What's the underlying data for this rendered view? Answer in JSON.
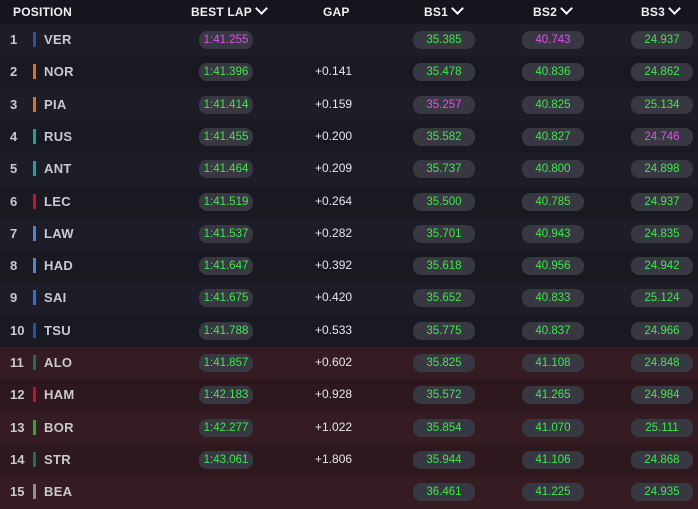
{
  "header": {
    "position": "POSITION",
    "best_lap": "BEST LAP",
    "gap": "GAP",
    "bs1": "BS1",
    "bs2": "BS2",
    "bs3": "BS3"
  },
  "colors": {
    "green": "#3ee84a",
    "purple": "#e04ff0"
  },
  "rows": [
    {
      "pos": "1",
      "driver": "VER",
      "team_color": "#2b4fa3",
      "best": "1:41.255",
      "best_c": "purple",
      "gap": "",
      "bs1": "35.385",
      "bs1_c": "green",
      "bs2": "40.743",
      "bs2_c": "purple",
      "bs3": "24.937",
      "bs3_c": "green"
    },
    {
      "pos": "2",
      "driver": "NOR",
      "team_color": "#d9731c",
      "best": "1:41.396",
      "best_c": "green",
      "gap": "+0.141",
      "bs1": "35.478",
      "bs1_c": "green",
      "bs2": "40.836",
      "bs2_c": "green",
      "bs3": "24.862",
      "bs3_c": "green"
    },
    {
      "pos": "3",
      "driver": "PIA",
      "team_color": "#d9731c",
      "best": "1:41.414",
      "best_c": "green",
      "gap": "+0.159",
      "bs1": "35.257",
      "bs1_c": "purple",
      "bs2": "40.825",
      "bs2_c": "green",
      "bs3": "25.134",
      "bs3_c": "green"
    },
    {
      "pos": "4",
      "driver": "RUS",
      "team_color": "#1aa39a",
      "best": "1:41.455",
      "best_c": "green",
      "gap": "+0.200",
      "bs1": "35.582",
      "bs1_c": "green",
      "bs2": "40.827",
      "bs2_c": "green",
      "bs3": "24.746",
      "bs3_c": "purple"
    },
    {
      "pos": "5",
      "driver": "ANT",
      "team_color": "#1aa39a",
      "best": "1:41.464",
      "best_c": "green",
      "gap": "+0.209",
      "bs1": "35.737",
      "bs1_c": "green",
      "bs2": "40.800",
      "bs2_c": "green",
      "bs3": "24.898",
      "bs3_c": "green"
    },
    {
      "pos": "6",
      "driver": "LEC",
      "team_color": "#c8102e",
      "best": "1:41.519",
      "best_c": "green",
      "gap": "+0.264",
      "bs1": "35.500",
      "bs1_c": "green",
      "bs2": "40.785",
      "bs2_c": "green",
      "bs3": "24.937",
      "bs3_c": "green"
    },
    {
      "pos": "7",
      "driver": "LAW",
      "team_color": "#5b7fd6",
      "best": "1:41.537",
      "best_c": "green",
      "gap": "+0.282",
      "bs1": "35.701",
      "bs1_c": "green",
      "bs2": "40.943",
      "bs2_c": "green",
      "bs3": "24.835",
      "bs3_c": "green"
    },
    {
      "pos": "8",
      "driver": "HAD",
      "team_color": "#5b7fd6",
      "best": "1:41.647",
      "best_c": "green",
      "gap": "+0.392",
      "bs1": "35.618",
      "bs1_c": "green",
      "bs2": "40.956",
      "bs2_c": "green",
      "bs3": "24.942",
      "bs3_c": "green"
    },
    {
      "pos": "9",
      "driver": "SAI",
      "team_color": "#2e6fd8",
      "best": "1:41.675",
      "best_c": "green",
      "gap": "+0.420",
      "bs1": "35.652",
      "bs1_c": "green",
      "bs2": "40.833",
      "bs2_c": "green",
      "bs3": "25.124",
      "bs3_c": "green"
    },
    {
      "pos": "10",
      "driver": "TSU",
      "team_color": "#2b4fa3",
      "best": "1:41.788",
      "best_c": "green",
      "gap": "+0.533",
      "bs1": "35.775",
      "bs1_c": "green",
      "bs2": "40.837",
      "bs2_c": "green",
      "bs3": "24.966",
      "bs3_c": "green"
    },
    {
      "pos": "11",
      "driver": "ALO",
      "team_color": "#1f6e55",
      "best": "1:41.857",
      "best_c": "green",
      "gap": "+0.602",
      "bs1": "35.825",
      "bs1_c": "green",
      "bs2": "41.108",
      "bs2_c": "green",
      "bs3": "24.848",
      "bs3_c": "green"
    },
    {
      "pos": "12",
      "driver": "HAM",
      "team_color": "#c8102e",
      "best": "1:42.183",
      "best_c": "green",
      "gap": "+0.928",
      "bs1": "35.572",
      "bs1_c": "green",
      "bs2": "41.265",
      "bs2_c": "green",
      "bs3": "24.984",
      "bs3_c": "green"
    },
    {
      "pos": "13",
      "driver": "BOR",
      "team_color": "#1fae2e",
      "best": "1:42.277",
      "best_c": "green",
      "gap": "+1.022",
      "bs1": "35.854",
      "bs1_c": "green",
      "bs2": "41.070",
      "bs2_c": "green",
      "bs3": "25.111",
      "bs3_c": "green"
    },
    {
      "pos": "14",
      "driver": "STR",
      "team_color": "#1f6e55",
      "best": "1:43.061",
      "best_c": "green",
      "gap": "+1.806",
      "bs1": "35.944",
      "bs1_c": "green",
      "bs2": "41.106",
      "bs2_c": "green",
      "bs3": "24.868",
      "bs3_c": "green"
    },
    {
      "pos": "15",
      "driver": "BEA",
      "team_color": "#8a8f98",
      "best": "",
      "best_c": "green",
      "gap": "",
      "bs1": "36.461",
      "bs1_c": "green",
      "bs2": "41.225",
      "bs2_c": "green",
      "bs3": "24.935",
      "bs3_c": "green"
    }
  ]
}
